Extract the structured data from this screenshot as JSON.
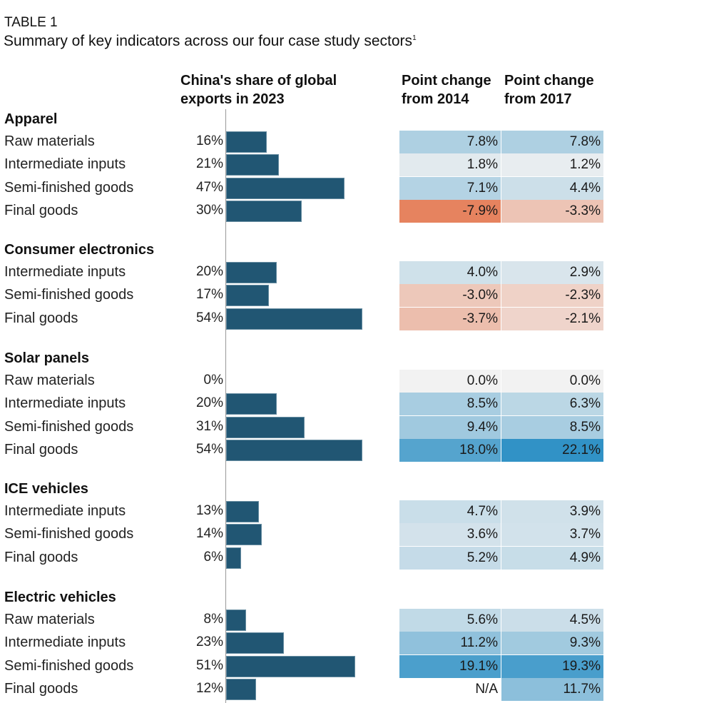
{
  "table_label": "TABLE 1",
  "title": "Summary of key indicators across our four case study sectors",
  "title_footnote": "1",
  "chart_data": {
    "type": "table",
    "columns": [
      "China's share of global exports in 2023",
      "Point change from 2014",
      "Point change from 2017"
    ],
    "column_lines": {
      "share": [
        "China's share of global",
        "exports in 2023"
      ],
      "c2014": [
        "Point change",
        "from 2014"
      ],
      "c2017": [
        "Point change",
        "from 2017"
      ]
    },
    "colors": {
      "bar": "#215673",
      "neutral": "#f2f2f2",
      "positive_max": "#3192c6",
      "negative_max": "#e6835f"
    },
    "groups": [
      {
        "name": "Apparel",
        "rows": [
          {
            "label": "Raw materials",
            "share": 16,
            "share_text": "16%",
            "c2014": 7.8,
            "c2014_text": "7.8%",
            "c2017": 7.8,
            "c2017_text": "7.8%"
          },
          {
            "label": "Intermediate inputs",
            "share": 21,
            "share_text": "21%",
            "c2014": 1.8,
            "c2014_text": "1.8%",
            "c2017": 1.2,
            "c2017_text": "1.2%"
          },
          {
            "label": "Semi-finished goods",
            "share": 47,
            "share_text": "47%",
            "c2014": 7.1,
            "c2014_text": "7.1%",
            "c2017": 4.4,
            "c2017_text": "4.4%"
          },
          {
            "label": "Final goods",
            "share": 30,
            "share_text": "30%",
            "c2014": -7.9,
            "c2014_text": "-7.9%",
            "c2017": -3.3,
            "c2017_text": "-3.3%"
          }
        ]
      },
      {
        "name": "Consumer electronics",
        "rows": [
          {
            "label": "Intermediate inputs",
            "share": 20,
            "share_text": "20%",
            "c2014": 4.0,
            "c2014_text": "4.0%",
            "c2017": 2.9,
            "c2017_text": "2.9%"
          },
          {
            "label": "Semi-finished goods",
            "share": 17,
            "share_text": "17%",
            "c2014": -3.0,
            "c2014_text": "-3.0%",
            "c2017": -2.3,
            "c2017_text": "-2.3%"
          },
          {
            "label": "Final goods",
            "share": 54,
            "share_text": "54%",
            "c2014": -3.7,
            "c2014_text": "-3.7%",
            "c2017": -2.1,
            "c2017_text": "-2.1%"
          }
        ]
      },
      {
        "name": "Solar panels",
        "rows": [
          {
            "label": "Raw materials",
            "share": 0,
            "share_text": "0%",
            "c2014": 0.0,
            "c2014_text": "0.0%",
            "c2017": 0.0,
            "c2017_text": "0.0%"
          },
          {
            "label": "Intermediate inputs",
            "share": 20,
            "share_text": "20%",
            "c2014": 8.5,
            "c2014_text": "8.5%",
            "c2017": 6.3,
            "c2017_text": "6.3%"
          },
          {
            "label": "Semi-finished goods",
            "share": 31,
            "share_text": "31%",
            "c2014": 9.4,
            "c2014_text": "9.4%",
            "c2017": 8.5,
            "c2017_text": "8.5%"
          },
          {
            "label": "Final goods",
            "share": 54,
            "share_text": "54%",
            "c2014": 18.0,
            "c2014_text": "18.0%",
            "c2017": 22.1,
            "c2017_text": "22.1%"
          }
        ]
      },
      {
        "name": "ICE vehicles",
        "rows": [
          {
            "label": "Intermediate inputs",
            "share": 13,
            "share_text": "13%",
            "c2014": 4.7,
            "c2014_text": "4.7%",
            "c2017": 3.9,
            "c2017_text": "3.9%"
          },
          {
            "label": "Semi-finished goods",
            "share": 14,
            "share_text": "14%",
            "c2014": 3.6,
            "c2014_text": "3.6%",
            "c2017": 3.7,
            "c2017_text": "3.7%"
          },
          {
            "label": "Final goods",
            "share": 6,
            "share_text": "6%",
            "c2014": 5.2,
            "c2014_text": "5.2%",
            "c2017": 4.9,
            "c2017_text": "4.9%"
          }
        ]
      },
      {
        "name": "Electric vehicles",
        "rows": [
          {
            "label": "Raw materials",
            "share": 8,
            "share_text": "8%",
            "c2014": 5.6,
            "c2014_text": "5.6%",
            "c2017": 4.5,
            "c2017_text": "4.5%"
          },
          {
            "label": "Intermediate inputs",
            "share": 23,
            "share_text": "23%",
            "c2014": 11.2,
            "c2014_text": "11.2%",
            "c2017": 9.3,
            "c2017_text": "9.3%"
          },
          {
            "label": "Semi-finished goods",
            "share": 51,
            "share_text": "51%",
            "c2014": 19.1,
            "c2014_text": "19.1%",
            "c2017": 19.3,
            "c2017_text": "19.3%"
          },
          {
            "label": "Final goods",
            "share": 12,
            "share_text": "12%",
            "c2014": null,
            "c2014_text": "N/A",
            "c2017": 11.7,
            "c2017_text": "11.7%"
          }
        ]
      }
    ]
  }
}
